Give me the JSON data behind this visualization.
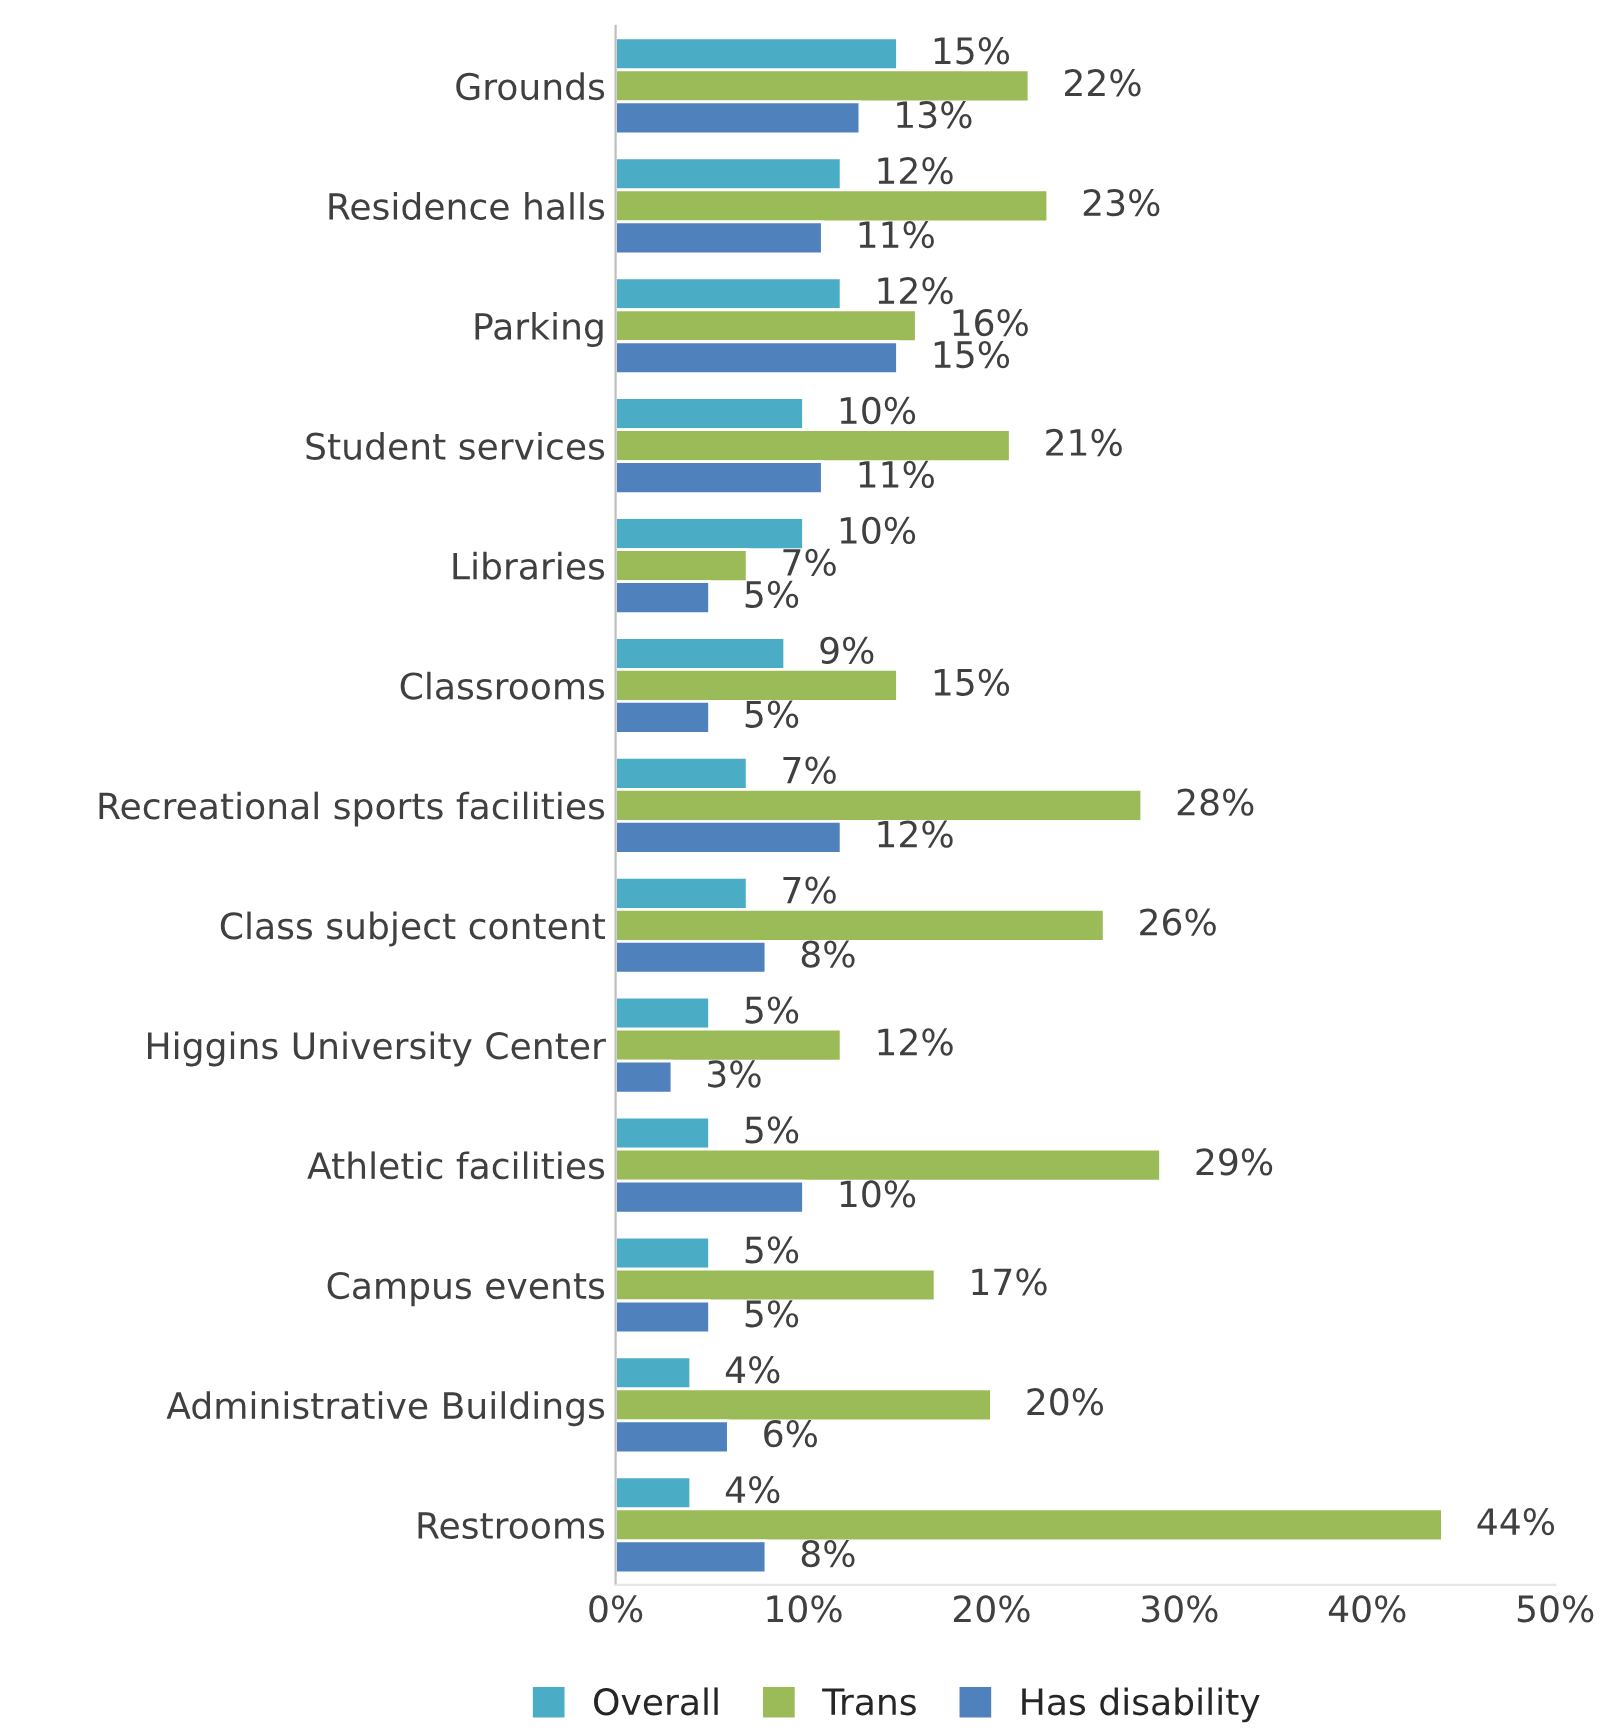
{
  "chart_data": {
    "type": "bar",
    "orientation": "horizontal",
    "categories": [
      "Grounds",
      "Residence halls",
      "Parking",
      "Student services",
      "Libraries",
      "Classrooms",
      "Recreational sports facilities",
      "Class subject content",
      "Higgins University Center",
      "Athletic facilities",
      "Campus events",
      "Administrative Buildings",
      "Restrooms"
    ],
    "series": [
      {
        "name": "Overall",
        "color": "#4bacc6",
        "values": [
          15,
          12,
          12,
          10,
          10,
          9,
          7,
          7,
          5,
          5,
          5,
          4,
          4
        ],
        "value_labels": [
          "15%",
          "12%",
          "12%",
          "10%",
          "10%",
          "9%",
          "7%",
          "7%",
          "5%",
          "5%",
          "5%",
          "4%",
          "4%"
        ]
      },
      {
        "name": "Trans",
        "color": "#9bbb59",
        "values": [
          22,
          23,
          16,
          21,
          7,
          15,
          28,
          26,
          12,
          29,
          17,
          20,
          44
        ],
        "value_labels": [
          "22%",
          "23%",
          "16%",
          "21%",
          "7%",
          "15%",
          "28%",
          "26%",
          "12%",
          "29%",
          "17%",
          "20%",
          "44%"
        ]
      },
      {
        "name": "Has disability",
        "color": "#4f81bd",
        "values": [
          13,
          11,
          15,
          11,
          5,
          5,
          12,
          8,
          3,
          10,
          5,
          6,
          8
        ],
        "value_labels": [
          "13%",
          "11%",
          "15%",
          "11%",
          "5%",
          "5%",
          "12%",
          "8%",
          "3%",
          "10%",
          "5%",
          "6%",
          "8%"
        ]
      }
    ],
    "xlim": [
      0,
      50
    ],
    "xticks": [
      {
        "value": 0,
        "label": "0%"
      },
      {
        "value": 10,
        "label": "10%"
      },
      {
        "value": 20,
        "label": "20%"
      },
      {
        "value": 30,
        "label": "30%"
      },
      {
        "value": 40,
        "label": "40%"
      },
      {
        "value": 50,
        "label": "50%"
      }
    ],
    "grid": false,
    "legend": "bottom"
  }
}
